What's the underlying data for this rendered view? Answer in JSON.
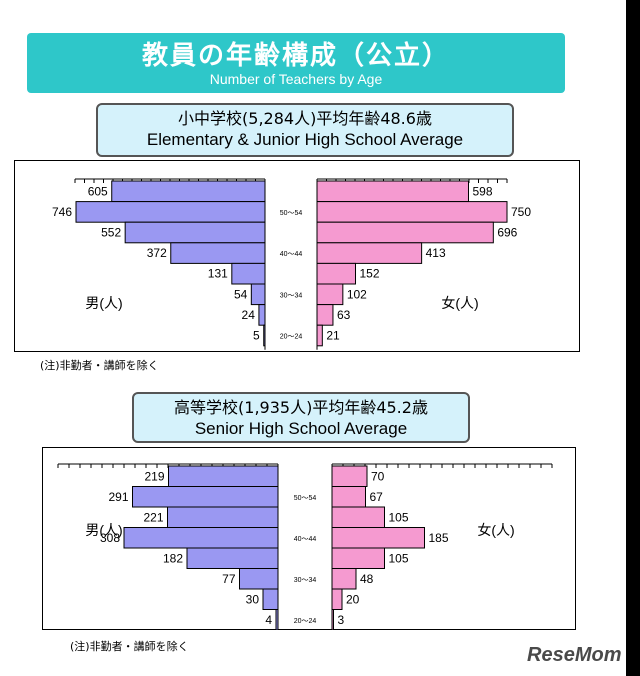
{
  "title": "教員の年齢構成（公立）",
  "subtitle": "Number of Teachers by Age",
  "brand": "ReseMom",
  "colors": {
    "banner": "#2ec7c9",
    "male": "#9a98f2",
    "female": "#f59ad0",
    "box": "#d5f2fb"
  },
  "chart_data": [
    {
      "type": "bar",
      "title": "小中学校(5,284人)平均年齢48.6歳",
      "subtitle": "Elementary & Junior High School Average",
      "male_label": "男(人)",
      "female_label": "女(人)",
      "age_labels": [
        "50～54",
        "40～44",
        "30～34",
        "20～24"
      ],
      "note": "(注)非勤者・講師を除く",
      "series": [
        {
          "name": "男(人)",
          "values": [
            605,
            746,
            552,
            372,
            131,
            54,
            24,
            5
          ]
        },
        {
          "name": "女(人)",
          "values": [
            598,
            750,
            696,
            413,
            152,
            102,
            63,
            21
          ]
        }
      ]
    },
    {
      "type": "bar",
      "title": "高等学校(1,935人)平均年齢45.2歳",
      "subtitle": "Senior High School Average",
      "male_label": "男(人)",
      "female_label": "女(人)",
      "age_labels": [
        "50～54",
        "40～44",
        "30～34",
        "20～24"
      ],
      "note": "(注)非勤者・講師を除く",
      "series": [
        {
          "name": "男(人)",
          "values": [
            219,
            291,
            221,
            308,
            182,
            77,
            30,
            4
          ]
        },
        {
          "name": "女(人)",
          "values": [
            70,
            67,
            105,
            185,
            105,
            48,
            20,
            3
          ]
        }
      ]
    }
  ]
}
